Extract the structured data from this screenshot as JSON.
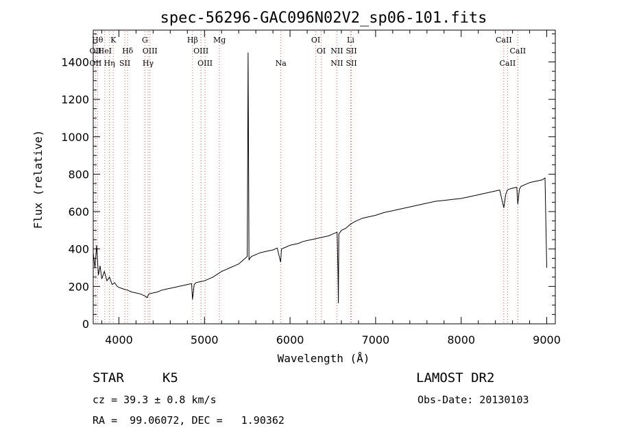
{
  "chart_data": {
    "type": "line",
    "title": "spec-56296-GAC096N02V2_sp06-101.fits",
    "xlabel": "Wavelength (Å)",
    "ylabel": "Flux (relative)",
    "xlim": [
      3700,
      9100
    ],
    "ylim": [
      0,
      1570
    ],
    "xticks": [
      4000,
      5000,
      6000,
      7000,
      8000,
      9000
    ],
    "yticks": [
      0,
      200,
      400,
      600,
      800,
      1000,
      1200,
      1400
    ],
    "grid": false,
    "spectrum": {
      "x": [
        3700,
        3720,
        3740,
        3760,
        3780,
        3800,
        3830,
        3860,
        3890,
        3920,
        3950,
        3980,
        4000,
        4030,
        4060,
        4100,
        4150,
        4200,
        4250,
        4300,
        4330,
        4350,
        4400,
        4450,
        4500,
        4550,
        4600,
        4650,
        4700,
        4750,
        4800,
        4850,
        4860,
        4880,
        4900,
        4950,
        5000,
        5050,
        5100,
        5150,
        5200,
        5250,
        5300,
        5350,
        5400,
        5450,
        5500,
        5510,
        5520,
        5530,
        5550,
        5600,
        5650,
        5700,
        5750,
        5800,
        5850,
        5890,
        5900,
        5950,
        6000,
        6050,
        6100,
        6150,
        6200,
        6250,
        6300,
        6350,
        6400,
        6450,
        6500,
        6550,
        6560,
        6565,
        6570,
        6600,
        6650,
        6700,
        6750,
        6800,
        6850,
        6900,
        6950,
        7000,
        7100,
        7200,
        7300,
        7400,
        7500,
        7600,
        7700,
        7800,
        7900,
        8000,
        8100,
        8200,
        8300,
        8400,
        8450,
        8498,
        8520,
        8540,
        8560,
        8600,
        8650,
        8662,
        8680,
        8700,
        8750,
        8800,
        8850,
        8900,
        8950,
        8980,
        9000
      ],
      "y": [
        380,
        300,
        420,
        260,
        310,
        240,
        280,
        230,
        250,
        210,
        220,
        200,
        195,
        190,
        185,
        180,
        170,
        165,
        160,
        150,
        140,
        160,
        165,
        170,
        180,
        185,
        190,
        195,
        200,
        205,
        210,
        215,
        130,
        210,
        220,
        225,
        230,
        240,
        250,
        265,
        280,
        290,
        300,
        310,
        320,
        340,
        360,
        1450,
        340,
        350,
        360,
        370,
        380,
        385,
        390,
        395,
        405,
        330,
        400,
        410,
        420,
        425,
        430,
        440,
        445,
        450,
        455,
        460,
        465,
        470,
        480,
        490,
        280,
        110,
        480,
        500,
        510,
        530,
        545,
        555,
        565,
        570,
        575,
        580,
        595,
        605,
        615,
        625,
        635,
        645,
        655,
        660,
        665,
        670,
        680,
        690,
        700,
        710,
        715,
        620,
        690,
        715,
        720,
        725,
        730,
        640,
        720,
        735,
        745,
        755,
        760,
        765,
        770,
        780,
        300
      ]
    },
    "line_markers": [
      {
        "wl": 3750,
        "labels": [
          "Hθ"
        ],
        "row": [
          0
        ]
      },
      {
        "wl": 3727,
        "labels": [
          "OII",
          "OII"
        ],
        "row": [
          1,
          2
        ]
      },
      {
        "wl": 3835,
        "labels": [
          "HeI"
        ],
        "row": [
          1
        ]
      },
      {
        "wl": 3889,
        "labels": [
          "Hη"
        ],
        "row": [
          2
        ]
      },
      {
        "wl": 3934,
        "labels": [
          "K"
        ],
        "row": [
          0
        ]
      },
      {
        "wl": 4102,
        "labels": [
          "Hδ"
        ],
        "row": [
          1
        ]
      },
      {
        "wl": 4069,
        "labels": [
          "SII"
        ],
        "row": [
          2
        ]
      },
      {
        "wl": 4304,
        "labels": [
          "G"
        ],
        "row": [
          0
        ]
      },
      {
        "wl": 4363,
        "labels": [
          "OIII"
        ],
        "row": [
          1
        ]
      },
      {
        "wl": 4341,
        "labels": [
          "Hγ"
        ],
        "row": [
          2
        ]
      },
      {
        "wl": 4861,
        "labels": [
          "Hβ"
        ],
        "row": [
          0
        ]
      },
      {
        "wl": 4959,
        "labels": [
          "OIII"
        ],
        "row": [
          1
        ]
      },
      {
        "wl": 5007,
        "labels": [
          "OIII"
        ],
        "row": [
          2
        ]
      },
      {
        "wl": 5175,
        "labels": [
          "Mg"
        ],
        "row": [
          0
        ]
      },
      {
        "wl": 5893,
        "labels": [
          "Na"
        ],
        "row": [
          2
        ]
      },
      {
        "wl": 6300,
        "labels": [
          "OI"
        ],
        "row": [
          0
        ]
      },
      {
        "wl": 6364,
        "labels": [
          "OI"
        ],
        "row": [
          1
        ]
      },
      {
        "wl": 6708,
        "labels": [
          "Li"
        ],
        "row": [
          0
        ]
      },
      {
        "wl": 6548,
        "labels": [
          "NII",
          "NII"
        ],
        "row": [
          1,
          2
        ]
      },
      {
        "wl": 6717,
        "labels": [
          "SII",
          "SII"
        ],
        "row": [
          1,
          2
        ]
      },
      {
        "wl": 8498,
        "labels": [
          "CaII"
        ],
        "row": [
          0
        ]
      },
      {
        "wl": 8542,
        "labels": [
          "CaII"
        ],
        "row": [
          2
        ]
      },
      {
        "wl": 8662,
        "labels": [
          "CaII"
        ],
        "row": [
          1
        ]
      }
    ]
  },
  "info": {
    "object_class": "STAR",
    "subclass": "K5",
    "survey": "LAMOST DR2",
    "redshift": "cz = 39.3 ± 0.8 km/s",
    "obs_date": "Obs-Date: 20130103",
    "coords": "RA =  99.06072, DEC =   1.90362"
  }
}
